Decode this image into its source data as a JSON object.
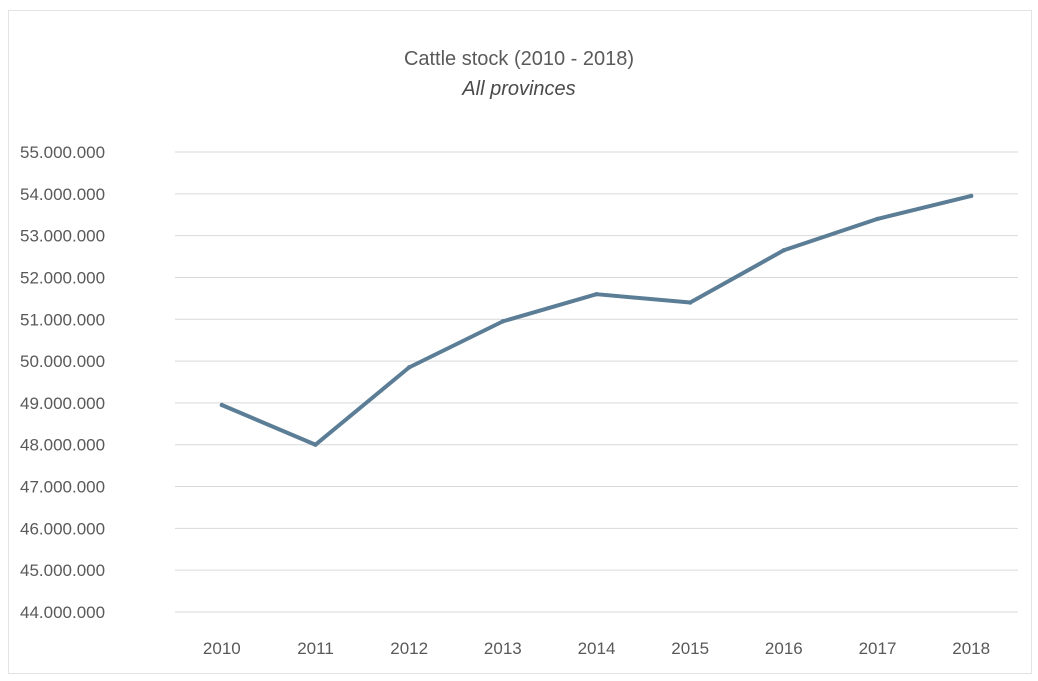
{
  "chart_data": {
    "type": "line",
    "title": "Cattle stock (2010 - 2018)",
    "subtitle": "All provinces",
    "xlabel": "",
    "ylabel": "",
    "categories": [
      "2010",
      "2011",
      "2012",
      "2013",
      "2014",
      "2015",
      "2016",
      "2017",
      "2018"
    ],
    "series": [
      {
        "values": [
          48950000,
          48000000,
          49850000,
          50950000,
          51600000,
          51400000,
          52650000,
          53400000,
          53950000
        ]
      }
    ],
    "ylim": [
      44000000,
      55000000
    ],
    "yticks": [
      {
        "value": 55000000,
        "label": "55.000.000"
      },
      {
        "value": 54000000,
        "label": "54.000.000"
      },
      {
        "value": 53000000,
        "label": "53.000.000"
      },
      {
        "value": 52000000,
        "label": "52.000.000"
      },
      {
        "value": 51000000,
        "label": "51.000.000"
      },
      {
        "value": 50000000,
        "label": "50.000.000"
      },
      {
        "value": 49000000,
        "label": "49.000.000"
      },
      {
        "value": 48000000,
        "label": "48.000.000"
      },
      {
        "value": 47000000,
        "label": "47.000.000"
      },
      {
        "value": 46000000,
        "label": "46.000.000"
      },
      {
        "value": 45000000,
        "label": "45.000.000"
      },
      {
        "value": 44000000,
        "label": "44.000.000"
      }
    ],
    "grid": true,
    "legend": "none",
    "colors": {
      "line": "#5b7e96",
      "grid": "#d9d9d9",
      "text": "#595959"
    }
  }
}
